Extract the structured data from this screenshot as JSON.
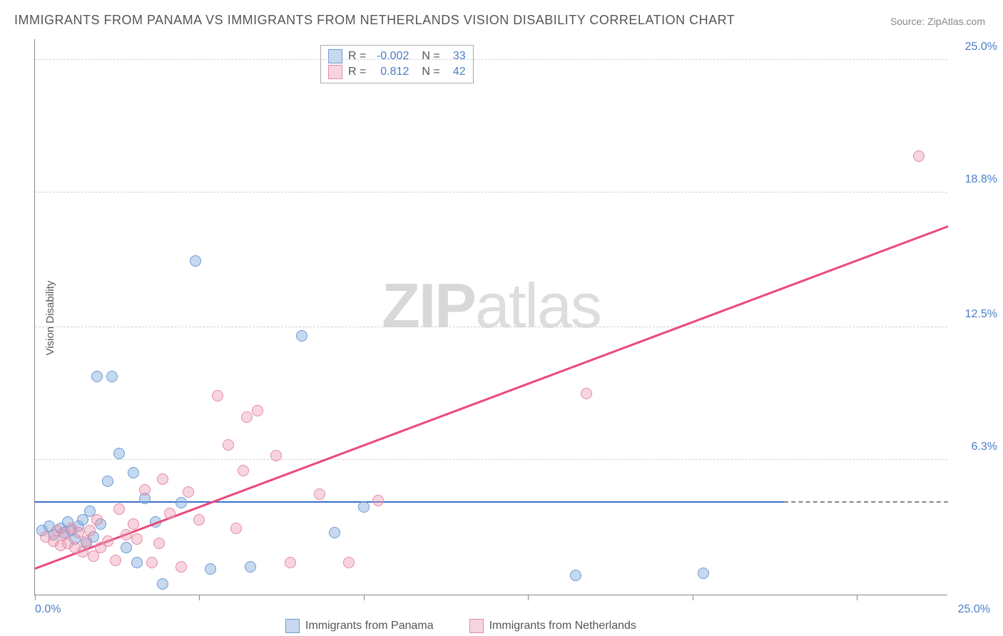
{
  "title": "IMMIGRANTS FROM PANAMA VS IMMIGRANTS FROM NETHERLANDS VISION DISABILITY CORRELATION CHART",
  "source": "Source: ZipAtlas.com",
  "watermark_bold": "ZIP",
  "watermark_light": "atlas",
  "y_axis_title": "Vision Disability",
  "chart": {
    "type": "scatter",
    "background_color": "#ffffff",
    "grid_color": "#d0d0d0",
    "axis_color": "#888888",
    "xmin": 0,
    "xmax": 25,
    "ymin": 0,
    "ymax": 26,
    "x_ticks": [
      0,
      4.5,
      9.0,
      13.5,
      18.0,
      22.5
    ],
    "y_grid": [
      {
        "y": 6.3,
        "label": "6.3%"
      },
      {
        "y": 12.5,
        "label": "12.5%"
      },
      {
        "y": 18.8,
        "label": "18.8%"
      },
      {
        "y": 25.0,
        "label": "25.0%"
      }
    ],
    "x_label_min": "0.0%",
    "x_label_max": "25.0%",
    "label_fontsize": 16,
    "label_color": "#4a7ec9",
    "series": [
      {
        "key": "panama",
        "label": "Immigrants from Panama",
        "fill": "rgba(130,170,220,0.45)",
        "stroke": "#6a9bd8",
        "trend_color": "#3a6fc8",
        "R": "-0.002",
        "N": "33",
        "trend": {
          "x1": 0,
          "y1": 4.3,
          "x2": 20.5,
          "y2": 4.3
        },
        "points": [
          [
            0.2,
            3.0
          ],
          [
            0.4,
            3.2
          ],
          [
            0.5,
            2.8
          ],
          [
            0.7,
            3.1
          ],
          [
            0.8,
            2.9
          ],
          [
            0.9,
            3.4
          ],
          [
            1.0,
            3.0
          ],
          [
            1.1,
            2.6
          ],
          [
            1.2,
            3.2
          ],
          [
            1.3,
            3.5
          ],
          [
            1.4,
            2.4
          ],
          [
            1.5,
            3.9
          ],
          [
            1.6,
            2.7
          ],
          [
            1.7,
            10.2
          ],
          [
            1.8,
            3.3
          ],
          [
            2.0,
            5.3
          ],
          [
            2.1,
            10.2
          ],
          [
            2.3,
            6.6
          ],
          [
            2.5,
            2.2
          ],
          [
            2.7,
            5.7
          ],
          [
            2.8,
            1.5
          ],
          [
            3.0,
            4.5
          ],
          [
            3.3,
            3.4
          ],
          [
            3.5,
            0.5
          ],
          [
            4.0,
            4.3
          ],
          [
            4.4,
            15.6
          ],
          [
            4.8,
            1.2
          ],
          [
            5.9,
            1.3
          ],
          [
            7.3,
            12.1
          ],
          [
            8.2,
            2.9
          ],
          [
            9.0,
            4.1
          ],
          [
            14.8,
            0.9
          ],
          [
            18.3,
            1.0
          ]
        ]
      },
      {
        "key": "netherlands",
        "label": "Immigrants from Netherlands",
        "fill": "rgba(235,150,175,0.40)",
        "stroke": "#e48aa6",
        "trend_color": "#e84a7a",
        "R": "0.812",
        "N": "42",
        "trend": {
          "x1": 0,
          "y1": 1.2,
          "x2": 25,
          "y2": 17.2
        },
        "points": [
          [
            0.3,
            2.7
          ],
          [
            0.5,
            2.5
          ],
          [
            0.6,
            3.0
          ],
          [
            0.7,
            2.3
          ],
          [
            0.8,
            2.8
          ],
          [
            0.9,
            2.4
          ],
          [
            1.0,
            3.1
          ],
          [
            1.1,
            2.2
          ],
          [
            1.2,
            2.9
          ],
          [
            1.3,
            2.0
          ],
          [
            1.4,
            2.5
          ],
          [
            1.5,
            3.0
          ],
          [
            1.6,
            1.8
          ],
          [
            1.7,
            3.5
          ],
          [
            1.8,
            2.2
          ],
          [
            2.0,
            2.5
          ],
          [
            2.2,
            1.6
          ],
          [
            2.3,
            4.0
          ],
          [
            2.5,
            2.8
          ],
          [
            2.7,
            3.3
          ],
          [
            2.8,
            2.6
          ],
          [
            3.0,
            4.9
          ],
          [
            3.2,
            1.5
          ],
          [
            3.4,
            2.4
          ],
          [
            3.5,
            5.4
          ],
          [
            3.7,
            3.8
          ],
          [
            4.0,
            1.3
          ],
          [
            4.2,
            4.8
          ],
          [
            4.5,
            3.5
          ],
          [
            5.0,
            9.3
          ],
          [
            5.3,
            7.0
          ],
          [
            5.5,
            3.1
          ],
          [
            5.7,
            5.8
          ],
          [
            5.8,
            8.3
          ],
          [
            6.1,
            8.6
          ],
          [
            6.6,
            6.5
          ],
          [
            7.0,
            1.5
          ],
          [
            7.8,
            4.7
          ],
          [
            8.6,
            1.5
          ],
          [
            9.4,
            4.4
          ],
          [
            15.1,
            9.4
          ],
          [
            24.2,
            20.5
          ]
        ]
      }
    ]
  }
}
